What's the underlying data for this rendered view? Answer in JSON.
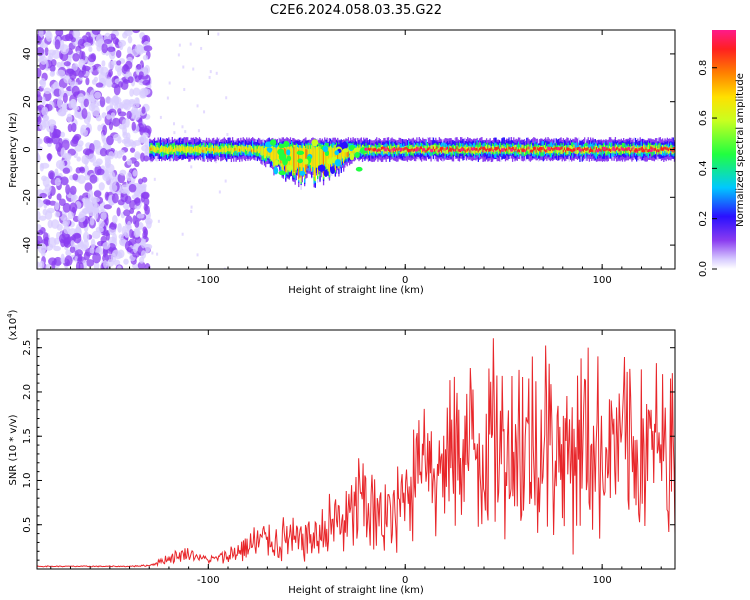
{
  "title": "C2E6.2024.058.03.35.G22",
  "colors": {
    "snr_line": "#e8262a",
    "axis": "#000000",
    "colormap": [
      "#b09cff",
      "#7a28e8",
      "#2a10ff",
      "#00e0ff",
      "#30ff30",
      "#f0ff20",
      "#ff9a00",
      "#ff2020",
      "#ff1a8a"
    ]
  },
  "chart_data": [
    {
      "type": "heatmap",
      "xlabel": "Height of straight line (km)",
      "ylabel": "Frequency (Hz)",
      "xlim": [
        -187,
        137
      ],
      "ylim": [
        -50,
        50
      ],
      "xticks": [
        -100,
        0,
        100
      ],
      "xtick_labels": [
        "-100",
        "0",
        "100"
      ],
      "yticks": [
        -40,
        -20,
        0,
        20,
        40
      ],
      "ytick_labels": [
        "-40",
        "-20",
        "0",
        "20",
        "40"
      ],
      "grid": false,
      "colorbar": {
        "label": "Normalized spectral amplitude",
        "range": [
          0,
          0.95
        ],
        "ticks": [
          0.0,
          0.2,
          0.4,
          0.6,
          0.8
        ],
        "tick_labels": [
          "0.0",
          "0.2",
          "0.4",
          "0.6",
          "0.8"
        ]
      },
      "description_data": {
        "noise_region_x": [
          -187,
          -130
        ],
        "ridge_center_hz": 0,
        "ridge_x_range": [
          -130,
          137
        ],
        "disturbed_region_x": [
          -75,
          -25
        ],
        "disturbed_dip_hz": -12,
        "high_amplitude_x_range": [
          -20,
          137
        ]
      }
    },
    {
      "type": "line",
      "xlabel": "Height of straight line (km)",
      "ylabel": "SNR (10 * v/v)",
      "y_scale_note": "(x10^4)",
      "xlim": [
        -187,
        137
      ],
      "ylim": [
        0,
        2.7
      ],
      "xticks": [
        -100,
        0,
        100
      ],
      "xtick_labels": [
        "-100",
        "0",
        "100"
      ],
      "yticks": [
        0.5,
        1.0,
        1.5,
        2.0,
        2.5
      ],
      "ytick_labels": [
        "0.5",
        "1.0",
        "1.5",
        "2.0",
        "2.5"
      ],
      "grid": false,
      "series": [
        {
          "x": [
            -187,
            -160,
            -140,
            -130,
            -120,
            -110,
            -100,
            -95,
            -90,
            -85,
            -80,
            -75,
            -70,
            -65,
            -60,
            -55,
            -50,
            -45,
            -40,
            -35,
            -30,
            -25,
            -20,
            -15,
            -10,
            -5,
            0,
            5,
            10,
            15,
            20,
            25,
            30,
            35,
            40,
            45,
            50,
            55,
            60,
            65,
            70,
            75,
            80,
            85,
            90,
            95,
            100,
            105,
            110,
            115,
            120,
            125,
            130,
            137
          ],
          "values": [
            0.03,
            0.03,
            0.03,
            0.04,
            0.12,
            0.18,
            0.1,
            0.12,
            0.15,
            0.2,
            0.25,
            0.3,
            0.35,
            0.3,
            0.35,
            0.3,
            0.35,
            0.35,
            0.45,
            0.55,
            0.5,
            0.7,
            0.8,
            0.55,
            0.6,
            0.55,
            0.9,
            1.1,
            1.5,
            1.1,
            1.2,
            1.3,
            1.4,
            1.4,
            1.35,
            1.5,
            1.4,
            1.45,
            1.4,
            1.35,
            1.5,
            1.45,
            1.35,
            1.3,
            1.5,
            1.4,
            1.35,
            1.4,
            1.45,
            1.35,
            1.4,
            1.3,
            1.35,
            1.4
          ],
          "amplitude": [
            0.005,
            0.005,
            0.005,
            0.01,
            0.05,
            0.07,
            0.04,
            0.06,
            0.08,
            0.12,
            0.15,
            0.18,
            0.2,
            0.2,
            0.22,
            0.2,
            0.22,
            0.22,
            0.28,
            0.35,
            0.35,
            0.45,
            0.5,
            0.4,
            0.45,
            0.45,
            0.55,
            0.6,
            0.5,
            0.65,
            0.8,
            0.8,
            0.85,
            0.9,
            0.9,
            0.9,
            0.9,
            0.9,
            0.95,
            0.95,
            1.0,
            0.95,
            0.9,
            0.9,
            0.9,
            0.85,
            0.85,
            0.85,
            0.85,
            0.9,
            0.95,
            0.9,
            0.9,
            0.9
          ]
        }
      ]
    }
  ]
}
